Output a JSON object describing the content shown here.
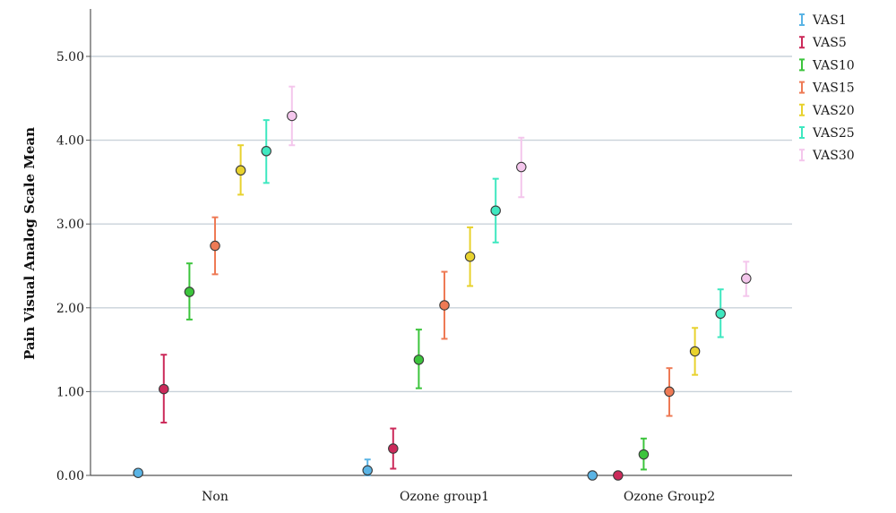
{
  "chart_data": {
    "type": "scatter",
    "subtype": "error-bar",
    "ylabel": "Pain Visual Analog Scale Mean",
    "xlabel": "",
    "ylim": [
      0,
      5.5
    ],
    "yticks": [
      "0.00",
      "1.00",
      "2.00",
      "3.00",
      "4.00",
      "5.00"
    ],
    "categories": [
      "Non",
      "Ozone group1",
      "Ozone Group2"
    ],
    "grid": "horizontal",
    "legend_position": "top-right",
    "series": [
      {
        "name": "VAS1",
        "color": "#5ab4e5",
        "values": [
          0.03,
          0.06,
          0.0
        ],
        "lower": [
          0.0,
          0.0,
          0.0
        ],
        "upper": [
          0.07,
          0.19,
          0.0
        ]
      },
      {
        "name": "VAS5",
        "color": "#cc2a5a",
        "values": [
          1.03,
          0.32,
          0.0
        ],
        "lower": [
          0.63,
          0.08,
          0.0
        ],
        "upper": [
          1.44,
          0.56,
          0.0
        ]
      },
      {
        "name": "VAS10",
        "color": "#3cc43c",
        "values": [
          2.19,
          1.38,
          0.25
        ],
        "lower": [
          1.86,
          1.04,
          0.07
        ],
        "upper": [
          2.53,
          1.74,
          0.44
        ]
      },
      {
        "name": "VAS15",
        "color": "#ee7a55",
        "values": [
          2.74,
          2.03,
          1.0
        ],
        "lower": [
          2.4,
          1.63,
          0.71
        ],
        "upper": [
          3.08,
          2.43,
          1.28
        ]
      },
      {
        "name": "VAS20",
        "color": "#e8d22e",
        "values": [
          3.64,
          2.61,
          1.48
        ],
        "lower": [
          3.35,
          2.26,
          1.2
        ],
        "upper": [
          3.94,
          2.96,
          1.76
        ]
      },
      {
        "name": "VAS25",
        "color": "#3fe8c0",
        "values": [
          3.87,
          3.16,
          1.93
        ],
        "lower": [
          3.49,
          2.78,
          1.65
        ],
        "upper": [
          4.24,
          3.54,
          2.22
        ]
      },
      {
        "name": "VAS30",
        "color": "#f4c6ec",
        "values": [
          4.29,
          3.68,
          2.35
        ],
        "lower": [
          3.94,
          3.32,
          2.14
        ],
        "upper": [
          4.64,
          4.03,
          2.55
        ]
      }
    ]
  }
}
